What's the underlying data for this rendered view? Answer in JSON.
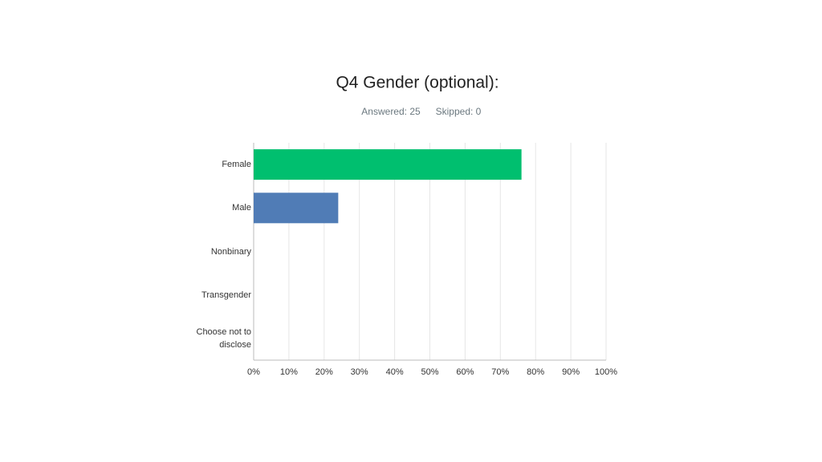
{
  "chart_data": {
    "type": "hbar",
    "title": "Q4 Gender (optional):",
    "subtitle": [
      "Answered: 25",
      "Skipped: 0"
    ],
    "categories": [
      "Female",
      "Male",
      "Nonbinary",
      "Transgender",
      "Choose not to disclose"
    ],
    "values": [
      76,
      24,
      0,
      0,
      0
    ],
    "colors": [
      "#00bf6f",
      "#507cb6",
      "#507cb6",
      "#507cb6",
      "#507cb6"
    ],
    "xlim": [
      0,
      100
    ],
    "xticks": [
      {
        "value": 0,
        "label": "0%"
      },
      {
        "value": 10,
        "label": "10%"
      },
      {
        "value": 20,
        "label": "20%"
      },
      {
        "value": 30,
        "label": "30%"
      },
      {
        "value": 40,
        "label": "40%"
      },
      {
        "value": 50,
        "label": "50%"
      },
      {
        "value": 60,
        "label": "60%"
      },
      {
        "value": 70,
        "label": "70%"
      },
      {
        "value": 80,
        "label": "80%"
      },
      {
        "value": 90,
        "label": "90%"
      },
      {
        "value": 100,
        "label": "100%"
      }
    ],
    "grid": true
  }
}
